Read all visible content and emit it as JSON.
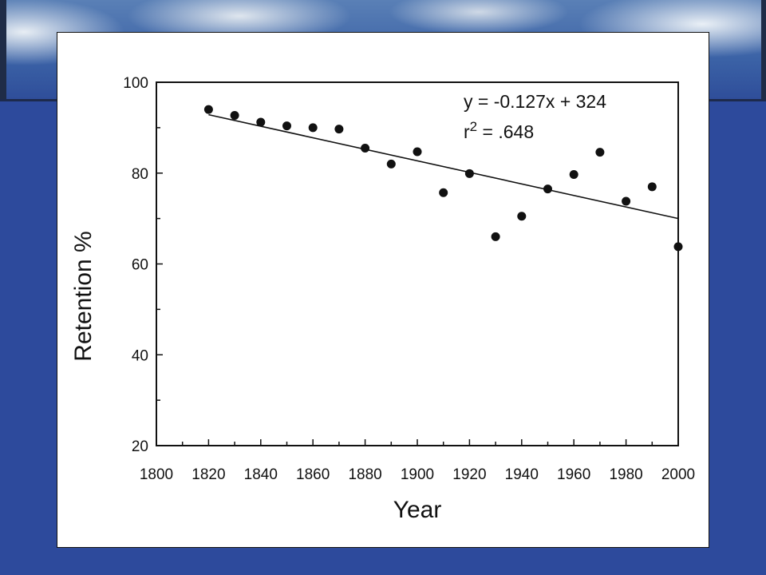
{
  "chart_data": {
    "type": "scatter",
    "xlabel": "Year",
    "ylabel": "Retention %",
    "xlim": [
      1800,
      2000
    ],
    "ylim": [
      20,
      100
    ],
    "x_ticks": [
      1800,
      1820,
      1840,
      1860,
      1880,
      1900,
      1920,
      1940,
      1960,
      1980,
      2000
    ],
    "y_ticks": [
      20,
      40,
      60,
      80,
      100
    ],
    "grid": false,
    "points": [
      {
        "x": 1820,
        "y": 94
      },
      {
        "x": 1830,
        "y": 92.7
      },
      {
        "x": 1840,
        "y": 91.2
      },
      {
        "x": 1850,
        "y": 90.4
      },
      {
        "x": 1860,
        "y": 90
      },
      {
        "x": 1870,
        "y": 89.7
      },
      {
        "x": 1880,
        "y": 85.5
      },
      {
        "x": 1890,
        "y": 82
      },
      {
        "x": 1900,
        "y": 84.7
      },
      {
        "x": 1910,
        "y": 75.7
      },
      {
        "x": 1920,
        "y": 79.9
      },
      {
        "x": 1930,
        "y": 66
      },
      {
        "x": 1940,
        "y": 70.5
      },
      {
        "x": 1950,
        "y": 76.5
      },
      {
        "x": 1960,
        "y": 79.7
      },
      {
        "x": 1970,
        "y": 84.6
      },
      {
        "x": 1980,
        "y": 73.8
      },
      {
        "x": 1990,
        "y": 77
      },
      {
        "x": 2000,
        "y": 63.8
      }
    ],
    "trendline": {
      "slope": -0.127,
      "intercept": 324,
      "x_range": [
        1820,
        2000
      ]
    },
    "annotations": {
      "equation": "y = -0.127x + 324",
      "r2_base": "r",
      "r2_exp": "2",
      "r2_value": " = .648"
    }
  }
}
